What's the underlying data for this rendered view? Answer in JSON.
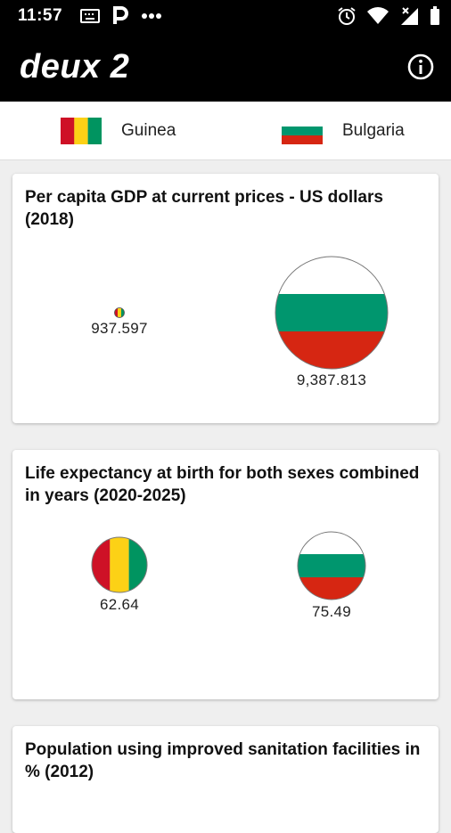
{
  "status_bar": {
    "time": "11:57",
    "icons_left": [
      "keyboard-icon",
      "parking-icon",
      "more-dots-icon"
    ],
    "icons_right": [
      "alarm-icon",
      "wifi-icon",
      "signal-icon",
      "battery-icon"
    ]
  },
  "app_bar": {
    "title": "deux 2",
    "action_icon": "info-icon"
  },
  "countries": [
    {
      "name": "Guinea",
      "flag": "guinea",
      "colors": [
        "#ce1126",
        "#fcd116",
        "#009460"
      ]
    },
    {
      "name": "Bulgaria",
      "flag": "bulgaria",
      "colors": [
        "#ffffff",
        "#00966e",
        "#d62612"
      ]
    }
  ],
  "cards": [
    {
      "title": "Per capita GDP at current prices - US dollars (2018)",
      "values": [
        {
          "country": "Guinea",
          "value": 937.597,
          "label": "937.597"
        },
        {
          "country": "Bulgaria",
          "value": 9387.813,
          "label": "9,387.813"
        }
      ]
    },
    {
      "title": "Life expectancy at birth for both sexes combined in years (2020-2025)",
      "values": [
        {
          "country": "Guinea",
          "value": 62.64,
          "label": "62.64"
        },
        {
          "country": "Bulgaria",
          "value": 75.49,
          "label": "75.49"
        }
      ]
    },
    {
      "title": "Population using improved sanitation facilities in % (2012)",
      "values": []
    }
  ]
}
